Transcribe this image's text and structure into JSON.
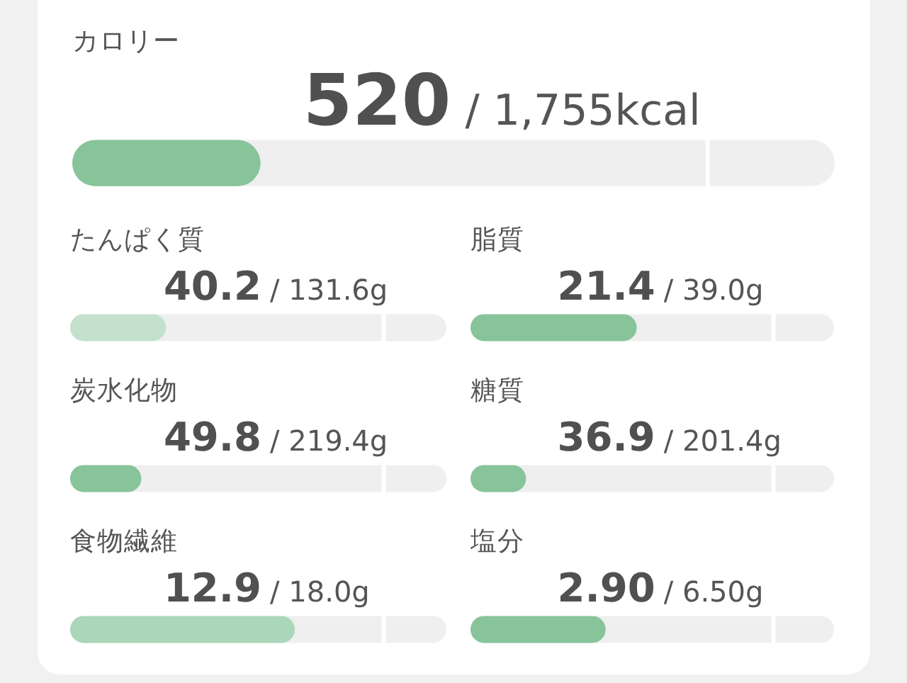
{
  "chart_data": [
    {
      "type": "other",
      "title": "カロリー",
      "categories": [
        null,
        null
      ],
      "values": [
        520,
        1755
      ],
      "value_labels": [
        "520",
        "/ 1,755kcal"
      ],
      "colors": [
        "#88c49a",
        "#efefef"
      ]
    },
    {
      "type": "other",
      "title": "たんぱく質",
      "categories": [
        null,
        null
      ],
      "values": [
        40.2,
        131.6
      ],
      "value_labels": [
        "40.2",
        "/ 131.6g"
      ],
      "colors": [
        "#c3e1cc",
        "#efefef"
      ]
    },
    {
      "type": "other",
      "title": "脂質",
      "categories": [
        null,
        null
      ],
      "values": [
        21.4,
        39.0
      ],
      "value_labels": [
        "21.4",
        "/ 39.0g"
      ],
      "colors": [
        "#88c49a",
        "#efefef"
      ]
    },
    {
      "type": "other",
      "title": "炭水化物",
      "categories": [
        null,
        null
      ],
      "values": [
        49.8,
        219.4
      ],
      "value_labels": [
        "49.8",
        "/ 219.4g"
      ],
      "colors": [
        "#88c49a",
        "#efefef"
      ]
    },
    {
      "type": "other",
      "title": "糖質",
      "categories": [
        null,
        null
      ],
      "values": [
        36.9,
        201.4
      ],
      "value_labels": [
        "36.9",
        "/ 201.4g"
      ],
      "colors": [
        "#88c49a",
        "#efefef"
      ]
    },
    {
      "type": "other",
      "title": "食物繊維",
      "categories": [
        null,
        null
      ],
      "values": [
        12.9,
        18.0
      ],
      "value_labels": [
        "12.9",
        "/ 18.0g"
      ],
      "colors": [
        "#aad6b9",
        "#efefef"
      ]
    },
    {
      "type": "other",
      "title": "塩分",
      "categories": [
        null,
        null
      ],
      "values": [
        2.9,
        6.5
      ],
      "value_labels": [
        "2.90",
        "/ 6.50g"
      ],
      "colors": [
        "#88c49a",
        "#efefef"
      ]
    }
  ]
}
